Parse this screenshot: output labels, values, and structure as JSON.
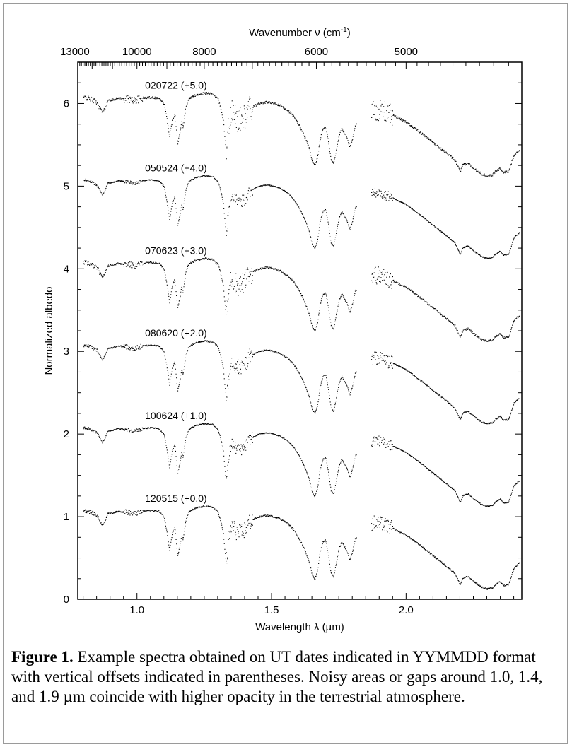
{
  "chart_data": {
    "type": "scatter",
    "xlabel_html_parts": [
      "Wavelength ",
      "λ",
      " (µm)"
    ],
    "xlabel": "Wavelength λ (µm)",
    "ylabel": "Normalized albedo",
    "top_axis_label_parts": [
      "Wavenumber ν (cm",
      "-1",
      ")"
    ],
    "x_ticks": [
      "1.0",
      "1.5",
      "2.0"
    ],
    "y_ticks": [
      "0",
      "1",
      "2",
      "3",
      "4",
      "5",
      "6"
    ],
    "top_ticks": [
      "13000",
      "10000",
      "8000",
      "6000",
      "5000"
    ],
    "xlim": [
      0.78,
      2.43
    ],
    "ylim": [
      0.0,
      6.5
    ],
    "gaps_um": [
      [
        1.815,
        1.87
      ]
    ],
    "series": [
      {
        "name": "020722 (+5.0)",
        "offset": 5.0,
        "noise": 1.3
      },
      {
        "name": "050524 (+4.0)",
        "offset": 4.0,
        "noise": 0.6
      },
      {
        "name": "070623 (+3.0)",
        "offset": 3.0,
        "noise": 1.1
      },
      {
        "name": "080620 (+2.0)",
        "offset": 2.0,
        "noise": 0.8
      },
      {
        "name": "100624 (+1.0)",
        "offset": 1.0,
        "noise": 0.6
      },
      {
        "name": "120515 (+0.0)",
        "offset": 0.0,
        "noise": 0.9
      }
    ],
    "base_spectrum": {
      "x": [
        0.8,
        0.82,
        0.85,
        0.87,
        0.88,
        0.89,
        0.91,
        0.93,
        0.96,
        0.99,
        1.02,
        1.05,
        1.08,
        1.1,
        1.11,
        1.12,
        1.13,
        1.14,
        1.145,
        1.15,
        1.16,
        1.165,
        1.17,
        1.18,
        1.19,
        1.2,
        1.22,
        1.25,
        1.28,
        1.3,
        1.31,
        1.32,
        1.325,
        1.33,
        1.335,
        1.34,
        1.35,
        1.36,
        1.38,
        1.4,
        1.42,
        1.45,
        1.48,
        1.5,
        1.53,
        1.56,
        1.58,
        1.6,
        1.62,
        1.64,
        1.65,
        1.66,
        1.67,
        1.68,
        1.69,
        1.7,
        1.71,
        1.72,
        1.73,
        1.74,
        1.75,
        1.76,
        1.77,
        1.78,
        1.79,
        1.8,
        1.81,
        1.88,
        1.9,
        1.92,
        1.95,
        2.0,
        2.05,
        2.1,
        2.15,
        2.18,
        2.2,
        2.21,
        2.23,
        2.25,
        2.28,
        2.3,
        2.32,
        2.33,
        2.35,
        2.36,
        2.38,
        2.4,
        2.42
      ],
      "y": [
        1.08,
        1.07,
        1.02,
        0.9,
        0.95,
        1.04,
        1.05,
        1.07,
        1.06,
        1.04,
        1.07,
        1.08,
        1.07,
        1.0,
        0.82,
        0.6,
        0.8,
        0.88,
        0.7,
        0.52,
        0.68,
        0.78,
        0.72,
        0.95,
        1.05,
        1.08,
        1.11,
        1.13,
        1.12,
        1.06,
        0.95,
        0.8,
        0.6,
        0.45,
        0.55,
        0.72,
        0.9,
        0.85,
        0.8,
        0.85,
        0.95,
        1.0,
        1.02,
        1.01,
        0.98,
        0.92,
        0.85,
        0.75,
        0.62,
        0.45,
        0.3,
        0.25,
        0.35,
        0.58,
        0.7,
        0.72,
        0.55,
        0.32,
        0.28,
        0.45,
        0.62,
        0.7,
        0.64,
        0.58,
        0.48,
        0.58,
        0.74,
        0.93,
        0.92,
        0.9,
        0.86,
        0.78,
        0.66,
        0.53,
        0.4,
        0.32,
        0.18,
        0.26,
        0.28,
        0.22,
        0.15,
        0.13,
        0.14,
        0.18,
        0.22,
        0.17,
        0.18,
        0.38,
        0.44
      ]
    }
  },
  "caption": {
    "lead": "Figure 1.",
    "text": "  Example spectra obtained on UT dates indicated in YYMMDD format with vertical offsets indicated in parentheses. Noisy areas or gaps around 1.0, 1.4, and 1.9 µm coincide with higher opacity in the terrestrial atmosphere."
  }
}
